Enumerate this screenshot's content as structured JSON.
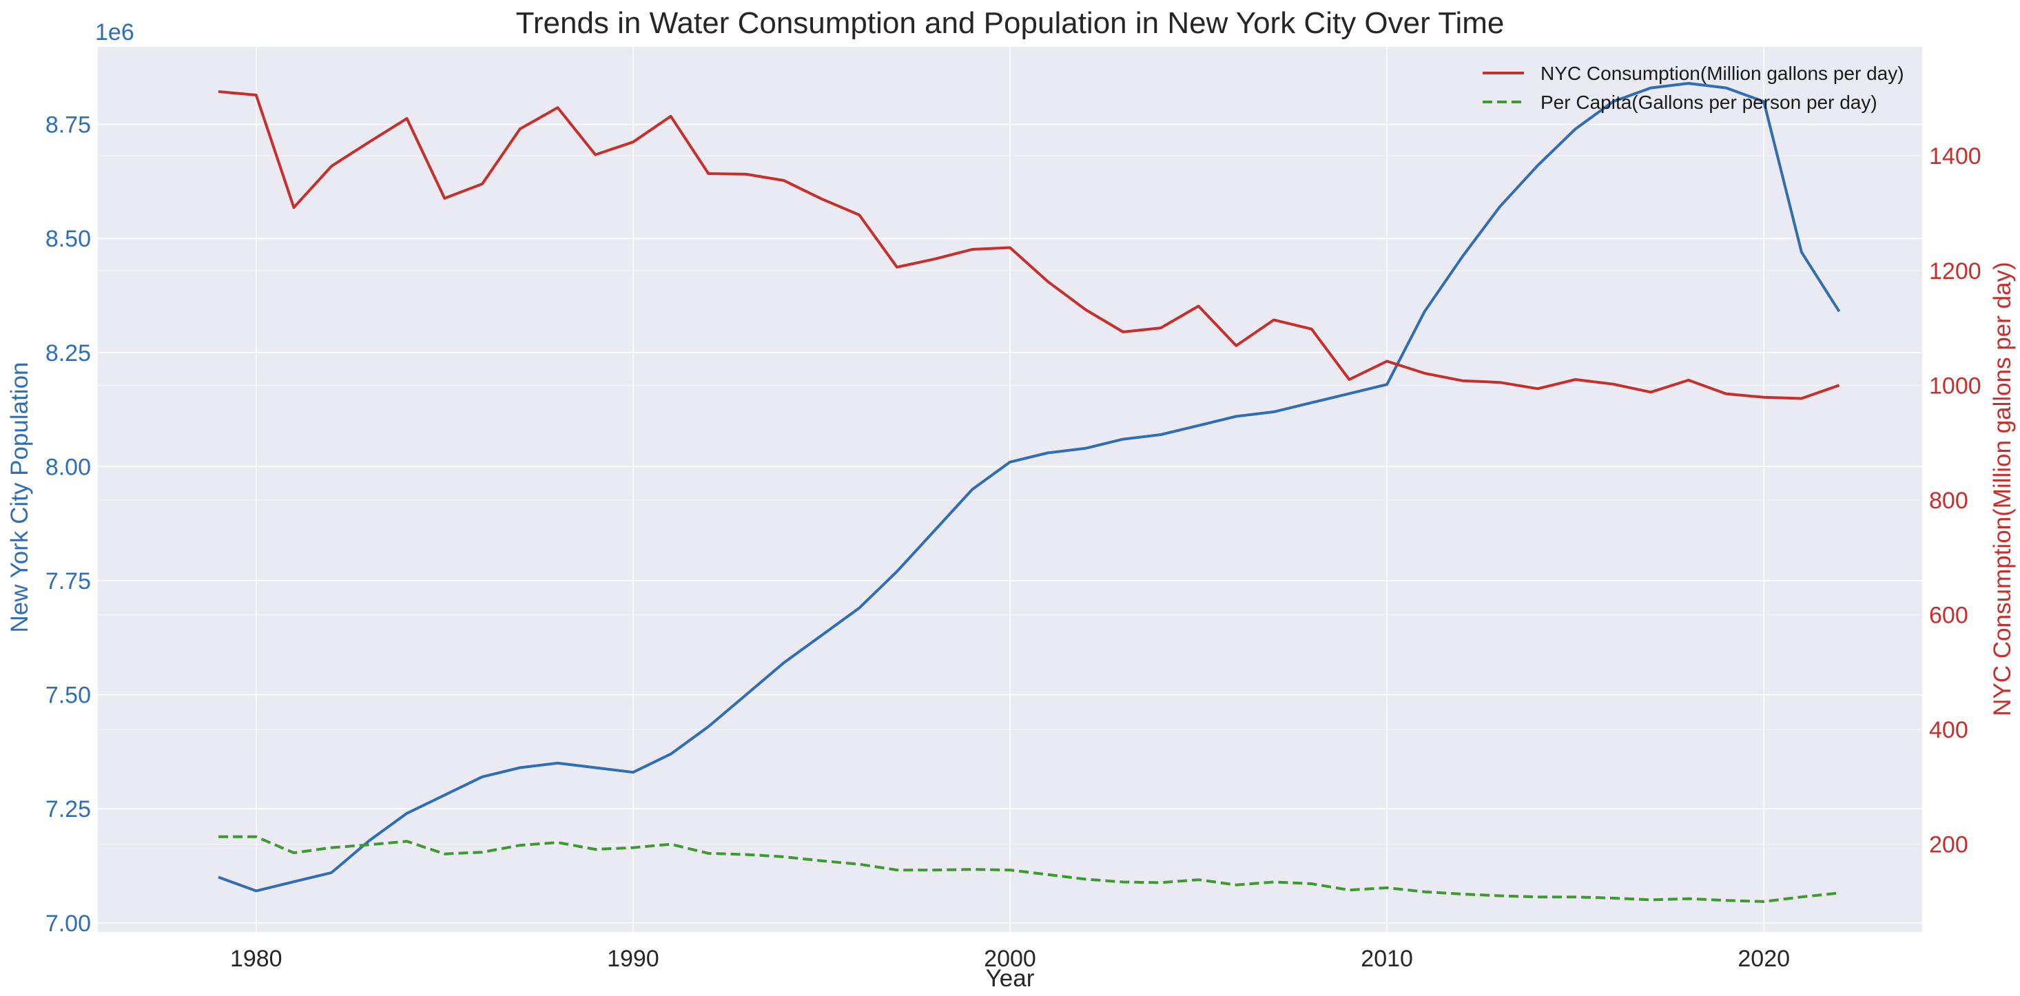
{
  "chart_data": {
    "type": "line",
    "title": "Trends in Water Consumption and Population in New York City Over Time",
    "xlabel": "Year",
    "ylabel_left": "New York City Population",
    "ylabel_right": "NYC Consumption(Million gallons per day)",
    "left_axis_multiplier": "1e6",
    "xlim": [
      1975.8,
      2024.2
    ],
    "ylim_left": [
      6.98,
      8.92
    ],
    "ylim_right": [
      47,
      1590
    ],
    "x_ticks": [
      1980,
      1990,
      2000,
      2010,
      2020
    ],
    "y_ticks_left": [
      "7.00",
      "7.25",
      "7.50",
      "7.75",
      "8.00",
      "8.25",
      "8.50",
      "8.75"
    ],
    "y_ticks_right": [
      200,
      400,
      600,
      800,
      1000,
      1200,
      1400
    ],
    "grid": true,
    "legend_position": "top-right",
    "colors": {
      "population": "#2f6eb5",
      "consumption": "#c62f2b",
      "per_capita": "#3d9a2f",
      "left_axis": "#2f6eb5",
      "right_axis": "#c62f2b"
    },
    "x": [
      1979,
      1980,
      1981,
      1982,
      1983,
      1984,
      1985,
      1986,
      1987,
      1988,
      1989,
      1990,
      1991,
      1992,
      1993,
      1994,
      1995,
      1996,
      1997,
      1998,
      1999,
      2000,
      2001,
      2002,
      2003,
      2004,
      2005,
      2006,
      2007,
      2008,
      2009,
      2010,
      2011,
      2012,
      2013,
      2014,
      2015,
      2016,
      2017,
      2018,
      2019,
      2020,
      2021,
      2022
    ],
    "series": [
      {
        "key": "population",
        "axis": "left",
        "style": "solid",
        "values": [
          7.1,
          7.07,
          7.09,
          7.11,
          7.18,
          7.24,
          7.28,
          7.32,
          7.34,
          7.35,
          7.34,
          7.33,
          7.37,
          7.43,
          7.5,
          7.57,
          7.63,
          7.69,
          7.77,
          7.86,
          7.95,
          8.01,
          8.03,
          8.04,
          8.06,
          8.07,
          8.09,
          8.11,
          8.12,
          8.14,
          8.16,
          8.18,
          8.34,
          8.46,
          8.57,
          8.66,
          8.74,
          8.8,
          8.83,
          8.84,
          8.83,
          8.8,
          8.47,
          8.34
        ]
      },
      {
        "key": "consumption",
        "axis": "right",
        "style": "solid",
        "name": "NYC Consumption(Million gallons per day)",
        "values": [
          1512,
          1506,
          1310,
          1382,
          1424,
          1465,
          1326,
          1351,
          1447,
          1484,
          1402,
          1424,
          1469,
          1369,
          1368,
          1357,
          1325,
          1297,
          1206,
          1220,
          1237,
          1240,
          1181,
          1132,
          1093,
          1100,
          1138,
          1069,
          1114,
          1098,
          1010,
          1042,
          1021,
          1008,
          1005,
          994,
          1010,
          1002,
          988,
          1009,
          985,
          979,
          977,
          1000
        ]
      },
      {
        "key": "per_capita",
        "axis": "right",
        "style": "dashed",
        "name": "Per Capita(Gallons per person per day)",
        "values": [
          213,
          213,
          185,
          194,
          199,
          205,
          183,
          186,
          198,
          203,
          191,
          194,
          200,
          184,
          182,
          178,
          171,
          165,
          155,
          155,
          156,
          155,
          147,
          139,
          134,
          133,
          138,
          129,
          134,
          131,
          120,
          124,
          117,
          113,
          110,
          108,
          108,
          106,
          103,
          105,
          102,
          100,
          108,
          115
        ]
      }
    ]
  }
}
